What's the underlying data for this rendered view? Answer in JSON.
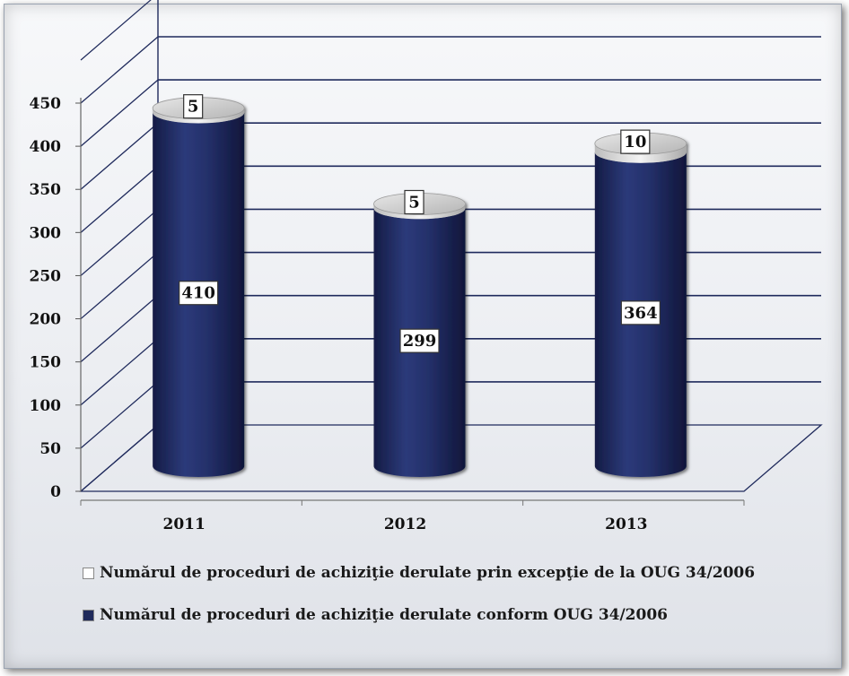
{
  "chart_data": {
    "type": "bar",
    "style": "3d-cylinder-stacked",
    "categories": [
      "2011",
      "2012",
      "2013"
    ],
    "series": [
      {
        "name": "Numărul de proceduri de achiziţie derulate conform OUG 34/2006",
        "values": [
          410,
          299,
          364
        ],
        "color": "#1f2a5c"
      },
      {
        "name": "Numărul  de proceduri de achiziţie derulate prin excepţie de la OUG 34/2006",
        "values": [
          5,
          5,
          10
        ],
        "color": "#f2f2f2"
      }
    ],
    "ylim": [
      0,
      450
    ],
    "yticks": [
      "0",
      "50",
      "100",
      "150",
      "200",
      "250",
      "300",
      "350",
      "400",
      "450"
    ],
    "grid": true,
    "legend_position": "bottom",
    "colors": {
      "gridlines": "#1f2a5c",
      "series_main": "#1f2a5c",
      "series_exception": "#f2f2f2"
    }
  },
  "legend": {
    "items": [
      {
        "label": "Numărul  de proceduri de achiziţie derulate prin excepţie de la OUG 34/2006",
        "color": "#ffffff"
      },
      {
        "label": "Numărul de proceduri de achiziţie derulate conform OUG 34/2006",
        "color": "#1f2a5c"
      }
    ]
  }
}
